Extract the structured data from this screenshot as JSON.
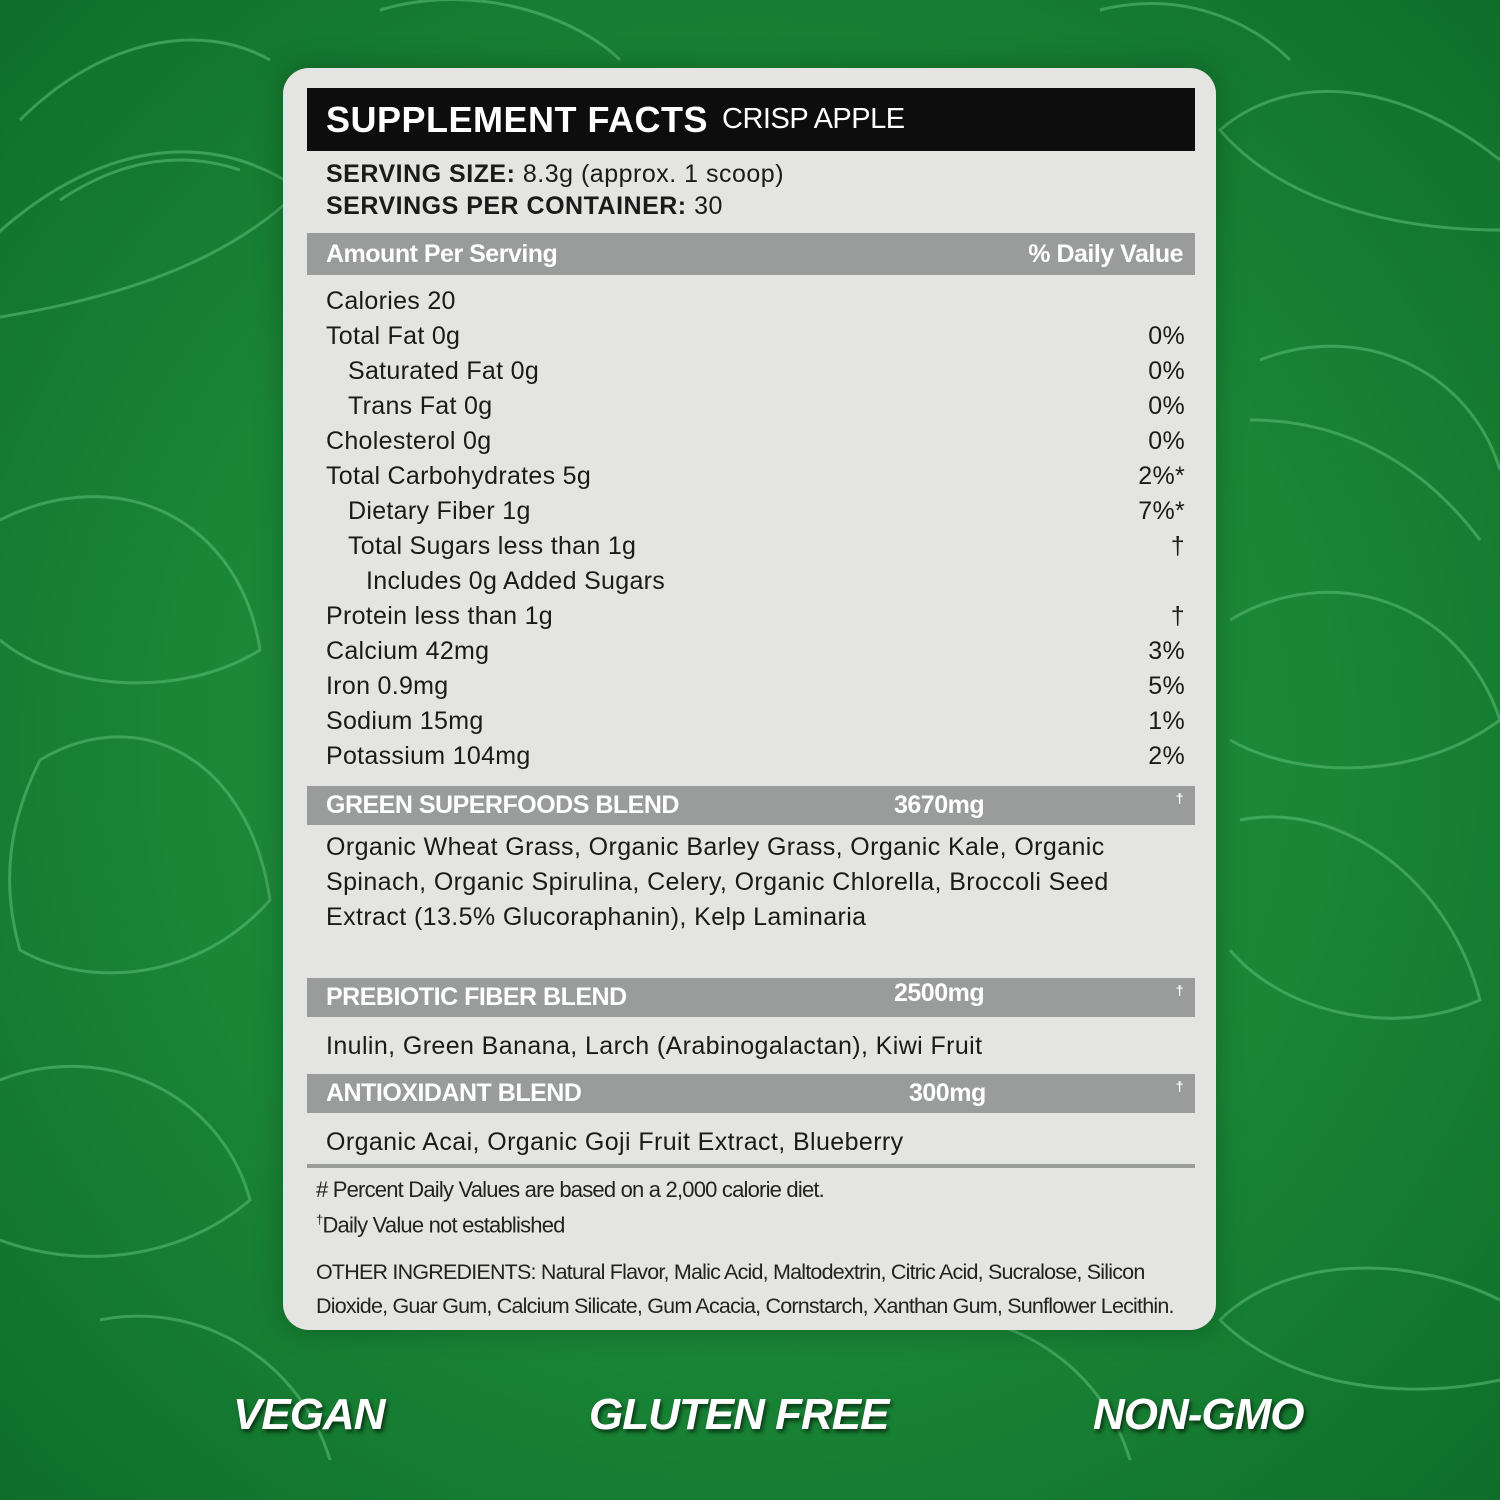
{
  "header": {
    "title": "SUPPLEMENT FACTS",
    "flavor": "CRISP APPLE"
  },
  "serving": {
    "size_label": "SERVING SIZE:",
    "size_value": "8.3g (approx. 1 scoop)",
    "per_container_label": "SERVINGS PER CONTAINER:",
    "per_container_value": "30"
  },
  "table_header": {
    "left": "Amount Per Serving",
    "right": "% Daily Value"
  },
  "rows": [
    {
      "label": "Calories 20",
      "dv": "",
      "indent": 0
    },
    {
      "label": "Total Fat 0g",
      "dv": "0%",
      "indent": 0
    },
    {
      "label": "Saturated Fat 0g",
      "dv": "0%",
      "indent": 1
    },
    {
      "label": "Trans Fat 0g",
      "dv": "0%",
      "indent": 1
    },
    {
      "label": "Cholesterol 0g",
      "dv": "0%",
      "indent": 0
    },
    {
      "label": "Total Carbohydrates 5g",
      "dv": "2%*",
      "indent": 0
    },
    {
      "label": "Dietary Fiber 1g",
      "dv": "7%*",
      "indent": 1
    },
    {
      "label": "Total Sugars less than 1g",
      "dv": "†",
      "indent": 1
    },
    {
      "label": "Includes 0g Added Sugars",
      "dv": "",
      "indent": 2
    },
    {
      "label": "Protein less than 1g",
      "dv": "†",
      "indent": 0
    },
    {
      "label": "Calcium 42mg",
      "dv": "3%",
      "indent": 0
    },
    {
      "label": "Iron 0.9mg",
      "dv": "5%",
      "indent": 0
    },
    {
      "label": "Sodium 15mg",
      "dv": "1%",
      "indent": 0
    },
    {
      "label": "Potassium 104mg",
      "dv": "2%",
      "indent": 0
    }
  ],
  "blends": [
    {
      "name": "GREEN SUPERFOODS BLEND",
      "amount": "3670mg",
      "dv": "†",
      "ingredients": "Organic Wheat Grass, Organic Barley Grass, Organic Kale, Organic Spinach, Organic Spirulina, Celery, Organic Chlorella, Broccoli Seed Extract (13.5% Glucoraphanin), Kelp Laminaria"
    },
    {
      "name": "PREBIOTIC FIBER BLEND",
      "amount": "2500mg",
      "dv": "†",
      "ingredients": "Inulin, Green Banana, Larch (Arabinogalactan), Kiwi Fruit"
    },
    {
      "name": "ANTIOXIDANT BLEND",
      "amount": "300mg",
      "dv": "†",
      "ingredients": "Organic Acai, Organic Goji Fruit Extract, Blueberry"
    }
  ],
  "footnotes": {
    "percent_note": "# Percent Daily Values are based on a 2,000 calorie diet.",
    "dagger": "†",
    "dagger_note": "Daily Value not established",
    "other_label": "OTHER INGREDIENTS:",
    "other_text": " Natural Flavor, Malic Acid, Maltodextrin, Citric Acid, Sucralose, Silicon Dioxide, Guar Gum, Calcium Silicate, Gum Acacia, Cornstarch, Xanthan Gum, Sunflower Lecithin."
  },
  "badges": [
    "VEGAN",
    "GLUTEN FREE",
    "NON-GMO"
  ],
  "colors": {
    "background": "#1a8636",
    "panel": "#e4e4e2",
    "bar": "#9a9b9b",
    "title_bar": "#0d0d0d"
  }
}
